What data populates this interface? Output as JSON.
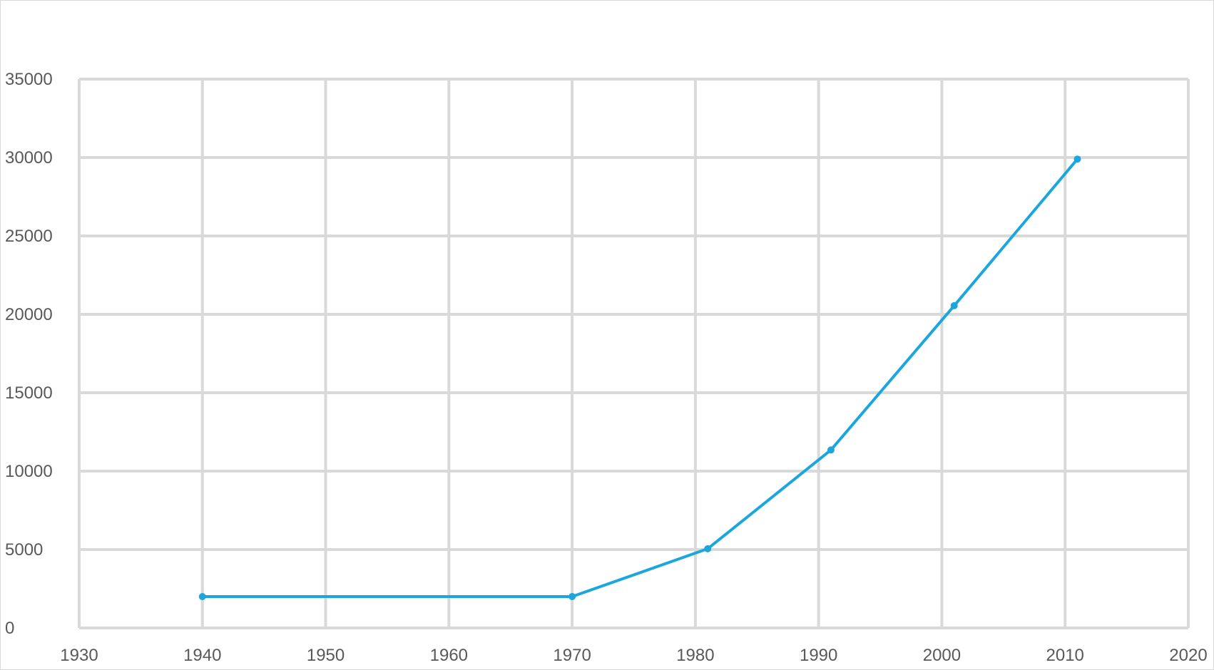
{
  "chart_data": {
    "type": "scatter",
    "mode": "lines+markers",
    "title": "",
    "xlabel": "",
    "ylabel": "",
    "xlim": [
      1930,
      2020
    ],
    "ylim": [
      0,
      35000
    ],
    "x_ticks": [
      "1930",
      "1940",
      "1950",
      "1960",
      "1970",
      "1980",
      "1990",
      "2000",
      "2010",
      "2020"
    ],
    "y_ticks": [
      "0",
      "5000",
      "10000",
      "15000",
      "20000",
      "25000",
      "30000",
      "35000"
    ],
    "grid": true,
    "legend": "none",
    "series": [
      {
        "color": "#1ca7dc",
        "points": [
          {
            "x": 1940,
            "y": 2000
          },
          {
            "x": 1970,
            "y": 2000
          },
          {
            "x": 1981,
            "y": 5050
          },
          {
            "x": 1991,
            "y": 11350
          },
          {
            "x": 2001,
            "y": 20550
          },
          {
            "x": 2011,
            "y": 29900
          }
        ]
      }
    ],
    "colors": {
      "grid": "#d9d9d9",
      "tick_text": "#595959",
      "series": "#1ca7dc"
    }
  }
}
